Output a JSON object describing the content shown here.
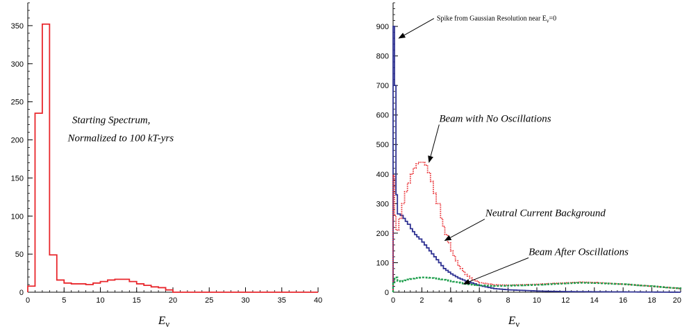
{
  "chart_data": [
    {
      "type": "line",
      "step": true,
      "xlabel": "E",
      "xlabel_sub": "ν",
      "xlim": [
        0,
        40
      ],
      "ylim": [
        0,
        380
      ],
      "xticks": [
        0,
        5,
        10,
        15,
        20,
        25,
        30,
        35,
        40
      ],
      "yticks": [
        0,
        50,
        100,
        150,
        200,
        250,
        300,
        350
      ],
      "grid": false,
      "annotations": [
        {
          "text": "Starting Spectrum,",
          "x": 11.5,
          "y": 222
        },
        {
          "text": "Normalized to 100 kT-yrs",
          "x": 12.8,
          "y": 198
        }
      ],
      "series": [
        {
          "color": "#e8262b",
          "bin_edges": [
            0,
            1,
            2,
            3,
            4,
            5,
            6,
            7,
            8,
            9,
            10,
            11,
            12,
            13,
            14,
            15,
            16,
            17,
            18,
            19,
            20,
            40
          ],
          "values": [
            8,
            235,
            352,
            49,
            16,
            12,
            11,
            11,
            10,
            12,
            14,
            16,
            17,
            17,
            14,
            11,
            9,
            7,
            6,
            3,
            0
          ]
        }
      ]
    },
    {
      "type": "line",
      "step": true,
      "xlabel": "E",
      "xlabel_sub": "ν",
      "xlim": [
        0,
        20
      ],
      "ylim": [
        0,
        980
      ],
      "xticks": [
        0,
        2,
        4,
        6,
        8,
        10,
        12,
        14,
        16,
        18,
        20
      ],
      "xtick_labels": [
        "0",
        "2",
        "4",
        "6",
        "8",
        "10",
        "12",
        "14",
        "16",
        "18",
        "20"
      ],
      "yticks": [
        0,
        100,
        200,
        300,
        400,
        500,
        600,
        700,
        800,
        900
      ],
      "grid": false,
      "annotations": [
        {
          "text": "Spike from Gaussian Resolution near E",
          "sub": "ν",
          "suffix": "=0",
          "x": 7.2,
          "y": 920,
          "arrow_to": [
            0.4,
            860
          ]
        },
        {
          "text": "Beam with No Oscillations",
          "x": 7.1,
          "y": 577,
          "arrow_to": [
            2.5,
            440
          ]
        },
        {
          "text": "Neutral Current Background",
          "x": 10.6,
          "y": 257,
          "arrow_to": [
            3.6,
            175
          ]
        },
        {
          "text": "Beam After Oscillations",
          "x": 12.9,
          "y": 126,
          "arrow_to": [
            4.9,
            28
          ]
        }
      ],
      "series": [
        {
          "name": "Neutral Current Background",
          "color": "#2e3192",
          "style": "solid",
          "x": [
            0.0,
            0.1,
            0.2,
            0.3,
            0.5,
            0.7,
            1.0,
            1.2,
            1.5,
            1.8,
            2.0,
            2.5,
            3.0,
            3.5,
            4.0,
            4.5,
            5.0,
            6.0,
            7.0,
            8.0,
            10.0,
            12.0,
            16.0,
            20.0
          ],
          "y": [
            900,
            700,
            330,
            265,
            260,
            250,
            230,
            215,
            195,
            180,
            170,
            140,
            110,
            80,
            62,
            48,
            38,
            22,
            12,
            8,
            4,
            2,
            1,
            0
          ]
        },
        {
          "name": "Beam with No Oscillations",
          "color": "#e8262b",
          "style": "dotted",
          "x": [
            0.0,
            0.1,
            0.2,
            0.4,
            0.6,
            0.8,
            1.0,
            1.2,
            1.4,
            1.6,
            1.8,
            2.0,
            2.2,
            2.4,
            2.6,
            2.8,
            3.0,
            3.3,
            3.6,
            4.0,
            4.5,
            5.0,
            5.5,
            6.0,
            7.0,
            8.0,
            10.0,
            12.0,
            13.0,
            14.0,
            16.0,
            18.0,
            20.0
          ],
          "y": [
            395,
            260,
            210,
            250,
            300,
            340,
            370,
            400,
            420,
            435,
            440,
            440,
            430,
            405,
            375,
            335,
            300,
            250,
            195,
            140,
            90,
            60,
            42,
            32,
            25,
            24,
            27,
            32,
            34,
            33,
            27,
            20,
            12
          ]
        },
        {
          "name": "Beam After Oscillations",
          "color": "#1e9e4c",
          "style": "dashed",
          "x": [
            0.0,
            0.1,
            0.3,
            0.5,
            0.8,
            1.0,
            1.5,
            2.0,
            2.5,
            3.0,
            3.5,
            4.0,
            4.5,
            5.0,
            5.5,
            6.0,
            7.0,
            8.0,
            10.0,
            12.0,
            13.0,
            14.0,
            16.0,
            18.0,
            20.0
          ],
          "y": [
            30,
            50,
            38,
            36,
            40,
            43,
            48,
            50,
            49,
            46,
            42,
            37,
            33,
            28,
            25,
            23,
            21,
            22,
            25,
            30,
            32,
            31,
            27,
            20,
            12
          ]
        }
      ]
    }
  ]
}
